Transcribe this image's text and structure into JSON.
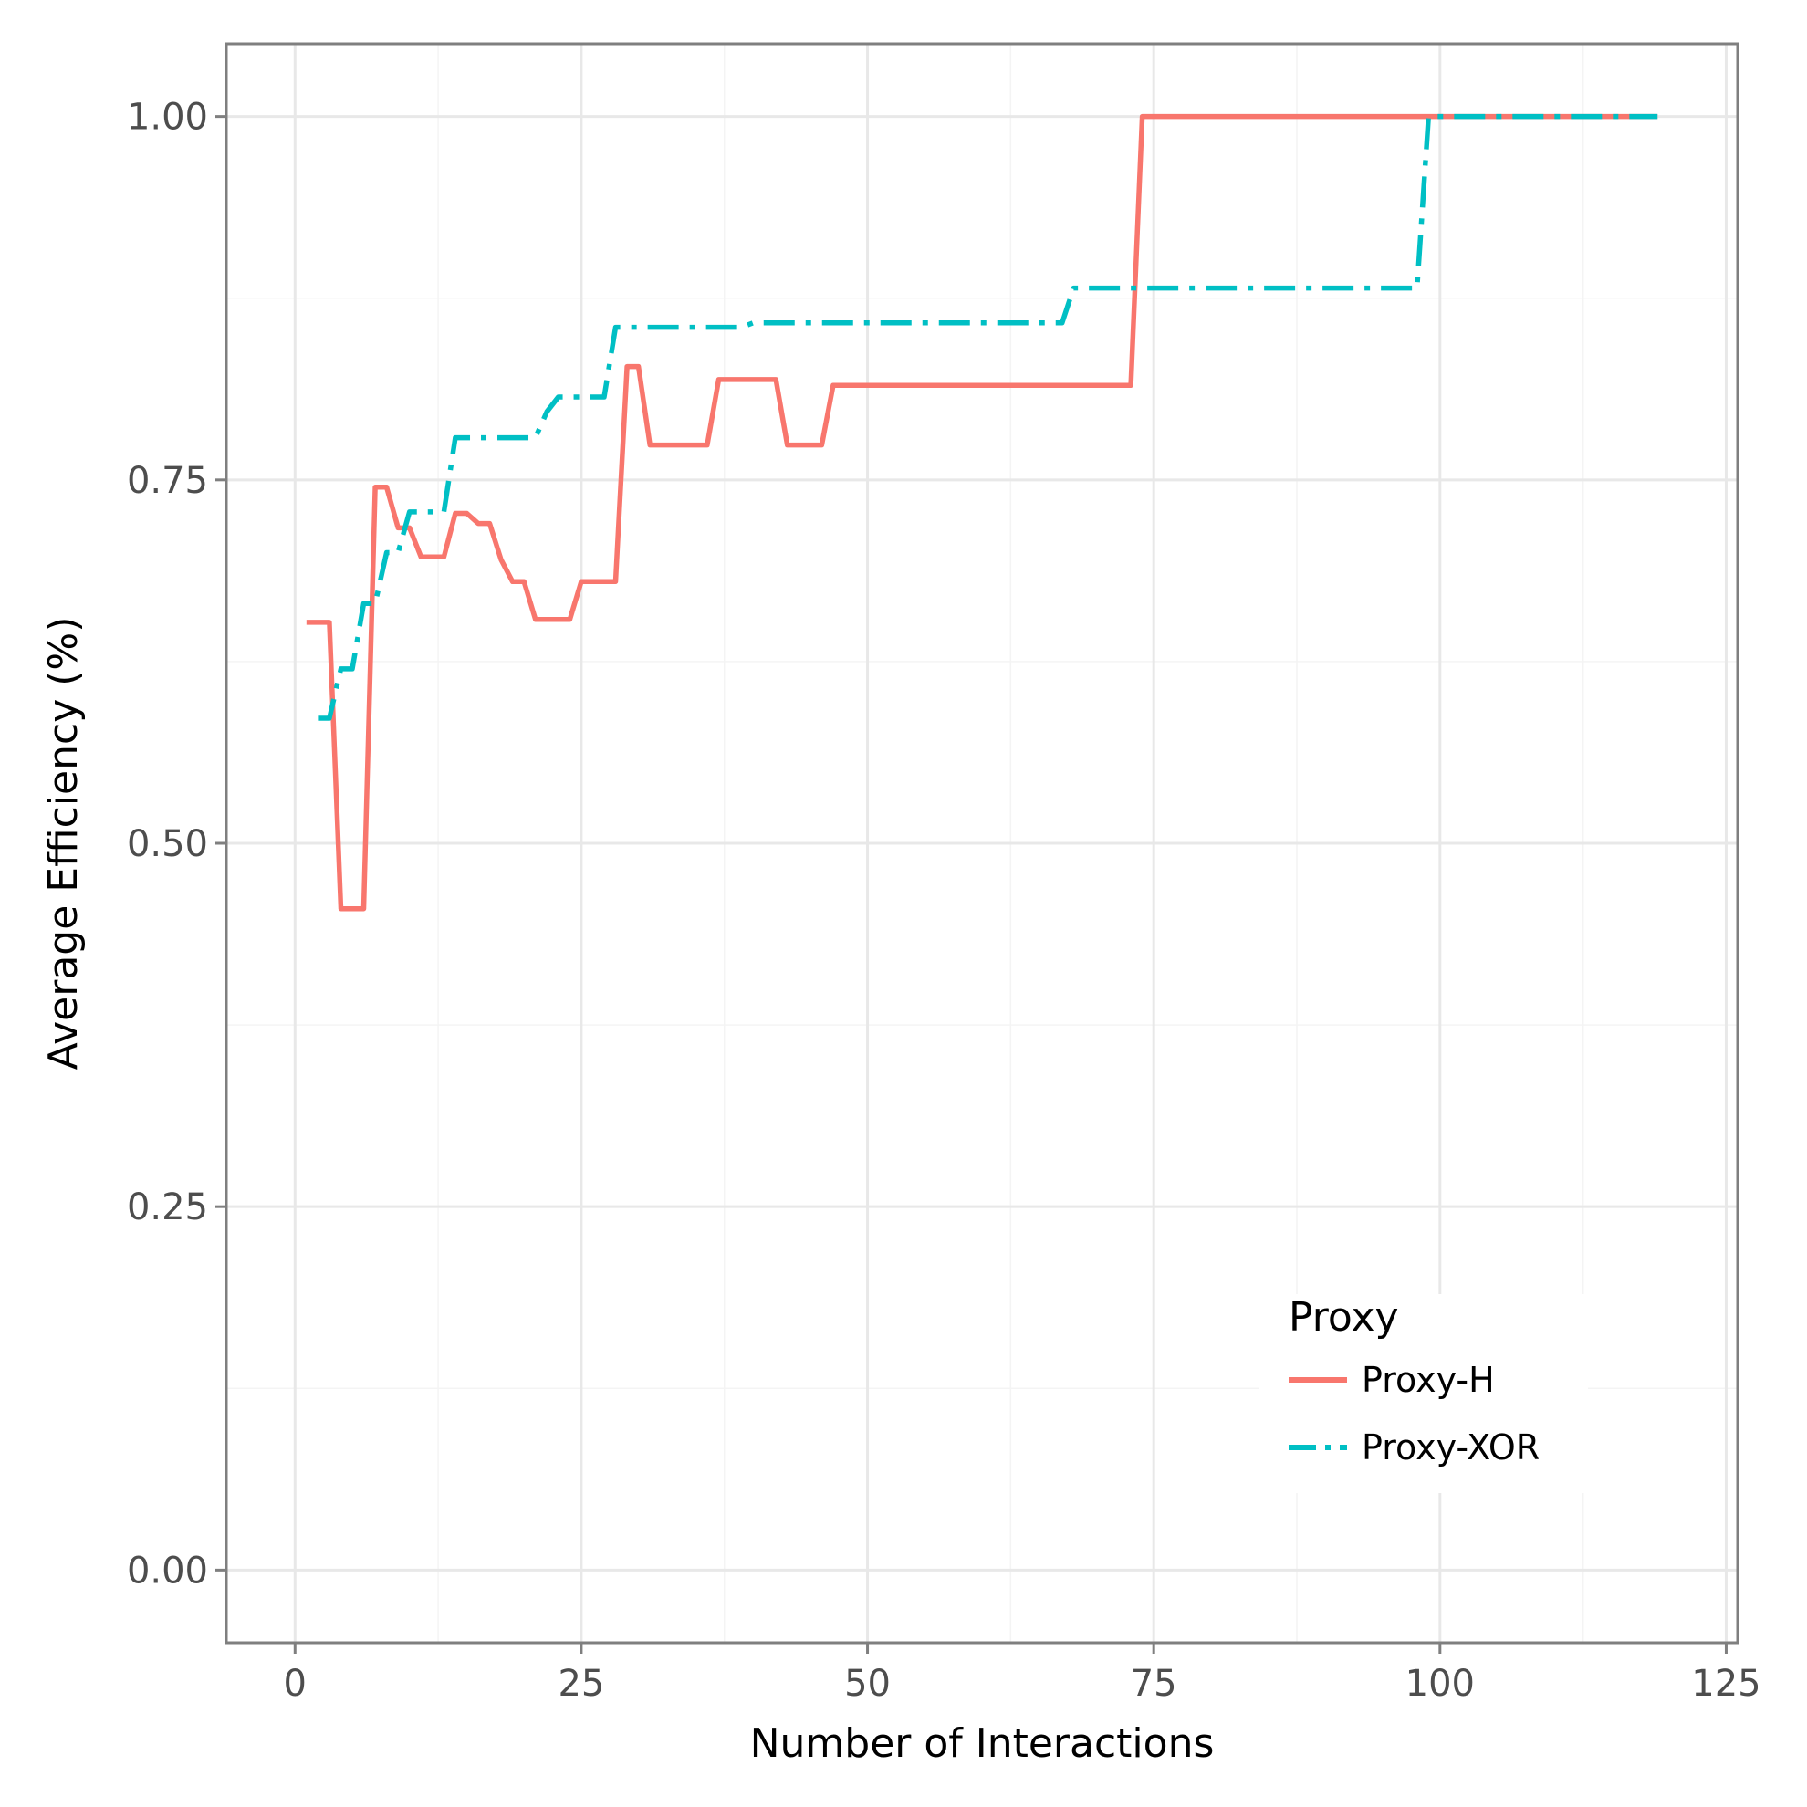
{
  "chart_data": {
    "type": "line",
    "xlabel": "Number of Interactions",
    "ylabel": "Average Efficiency (%)",
    "xlim": [
      -6,
      126
    ],
    "ylim": [
      -0.05,
      1.05
    ],
    "x_ticks": [
      0,
      25,
      50,
      75,
      100,
      125
    ],
    "x_tick_labels": [
      "0",
      "25",
      "50",
      "75",
      "100",
      "125"
    ],
    "y_ticks": [
      0,
      0.25,
      0.5,
      0.75,
      1.0
    ],
    "y_tick_labels": [
      "0.00",
      "0.25",
      "0.50",
      "0.75",
      "1.00"
    ],
    "grid": true,
    "legend": {
      "title": "Proxy",
      "position": "bottom-right"
    },
    "series": [
      {
        "name": "Proxy-H",
        "color": "#F8766D",
        "linetype": "solid",
        "points": [
          [
            1,
            0.652
          ],
          [
            3,
            0.652
          ],
          [
            4,
            0.455
          ],
          [
            6,
            0.455
          ],
          [
            7,
            0.745
          ],
          [
            8,
            0.745
          ],
          [
            9,
            0.717
          ],
          [
            10,
            0.717
          ],
          [
            11,
            0.697
          ],
          [
            13,
            0.697
          ],
          [
            14,
            0.727
          ],
          [
            15,
            0.727
          ],
          [
            16,
            0.72
          ],
          [
            17,
            0.72
          ],
          [
            18,
            0.695
          ],
          [
            19,
            0.68
          ],
          [
            20,
            0.68
          ],
          [
            21,
            0.654
          ],
          [
            24,
            0.654
          ],
          [
            25,
            0.68
          ],
          [
            28,
            0.68
          ],
          [
            29,
            0.828
          ],
          [
            30,
            0.828
          ],
          [
            31,
            0.774
          ],
          [
            36,
            0.774
          ],
          [
            37,
            0.819
          ],
          [
            42,
            0.819
          ],
          [
            43,
            0.774
          ],
          [
            46,
            0.774
          ],
          [
            47,
            0.815
          ],
          [
            73,
            0.815
          ],
          [
            74,
            1.0
          ],
          [
            119,
            1.0
          ]
        ]
      },
      {
        "name": "Proxy-XOR",
        "color": "#00BFC4",
        "linetype": "dotdash",
        "points": [
          [
            2,
            0.586
          ],
          [
            3,
            0.586
          ],
          [
            4,
            0.62
          ],
          [
            5,
            0.62
          ],
          [
            6,
            0.665
          ],
          [
            7,
            0.665
          ],
          [
            8,
            0.7
          ],
          [
            9,
            0.7
          ],
          [
            10,
            0.728
          ],
          [
            13,
            0.728
          ],
          [
            14,
            0.779
          ],
          [
            21,
            0.779
          ],
          [
            22,
            0.797
          ],
          [
            23,
            0.807
          ],
          [
            27,
            0.807
          ],
          [
            28,
            0.855
          ],
          [
            39,
            0.855
          ],
          [
            40,
            0.858
          ],
          [
            67,
            0.858
          ],
          [
            68,
            0.882
          ],
          [
            98,
            0.882
          ],
          [
            99,
            1.0
          ],
          [
            119,
            1.0
          ]
        ]
      }
    ]
  }
}
